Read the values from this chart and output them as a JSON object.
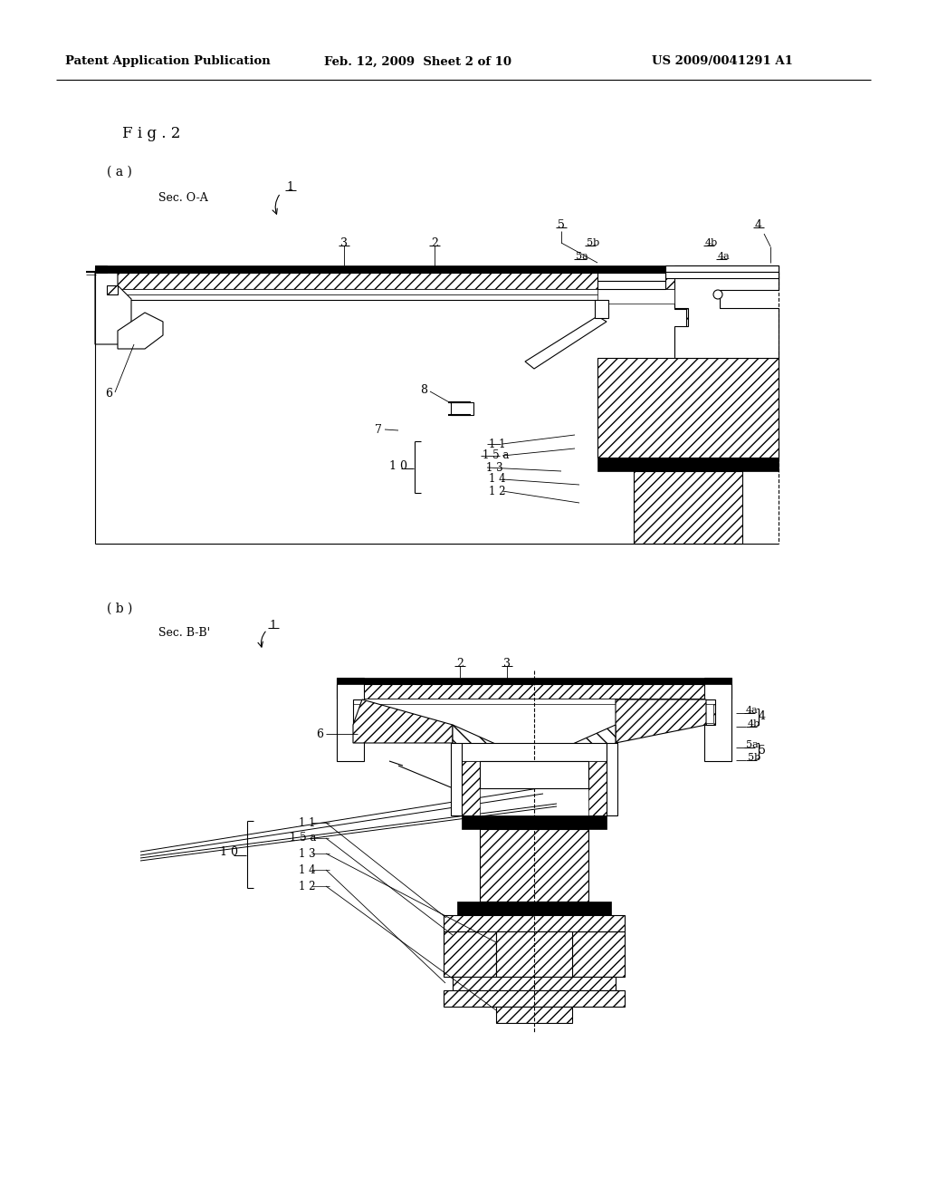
{
  "header_left": "Patent Application Publication",
  "header_center": "Feb. 12, 2009  Sheet 2 of 10",
  "header_right": "US 2009/0041291 A1",
  "fig_label": "F i g . 2",
  "sub_a_label": "( a )",
  "sub_b_label": "( b )",
  "sec_oa_label": "Sec. O-A",
  "sec_bb_label": "Sec. B-B'",
  "bg_color": "#ffffff"
}
